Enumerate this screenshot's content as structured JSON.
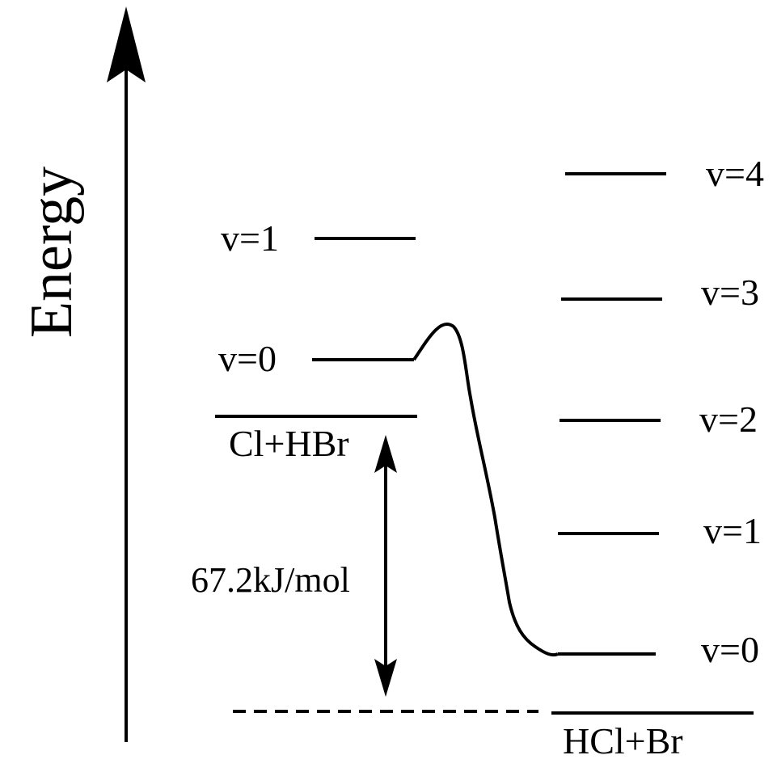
{
  "axis": {
    "label": "Energy"
  },
  "reactants": {
    "label": "Cl+HBr",
    "levels": [
      {
        "label": "v=1"
      },
      {
        "label": "v=0"
      }
    ]
  },
  "products": {
    "label": "HCl+Br",
    "levels": [
      {
        "label": "v=4"
      },
      {
        "label": "v=3"
      },
      {
        "label": "v=2"
      },
      {
        "label": "v=1"
      },
      {
        "label": "v=0"
      }
    ]
  },
  "energy_gap": {
    "label": "67.2kJ/mol"
  },
  "colors": {
    "ink": "#000000",
    "background": "#ffffff"
  }
}
